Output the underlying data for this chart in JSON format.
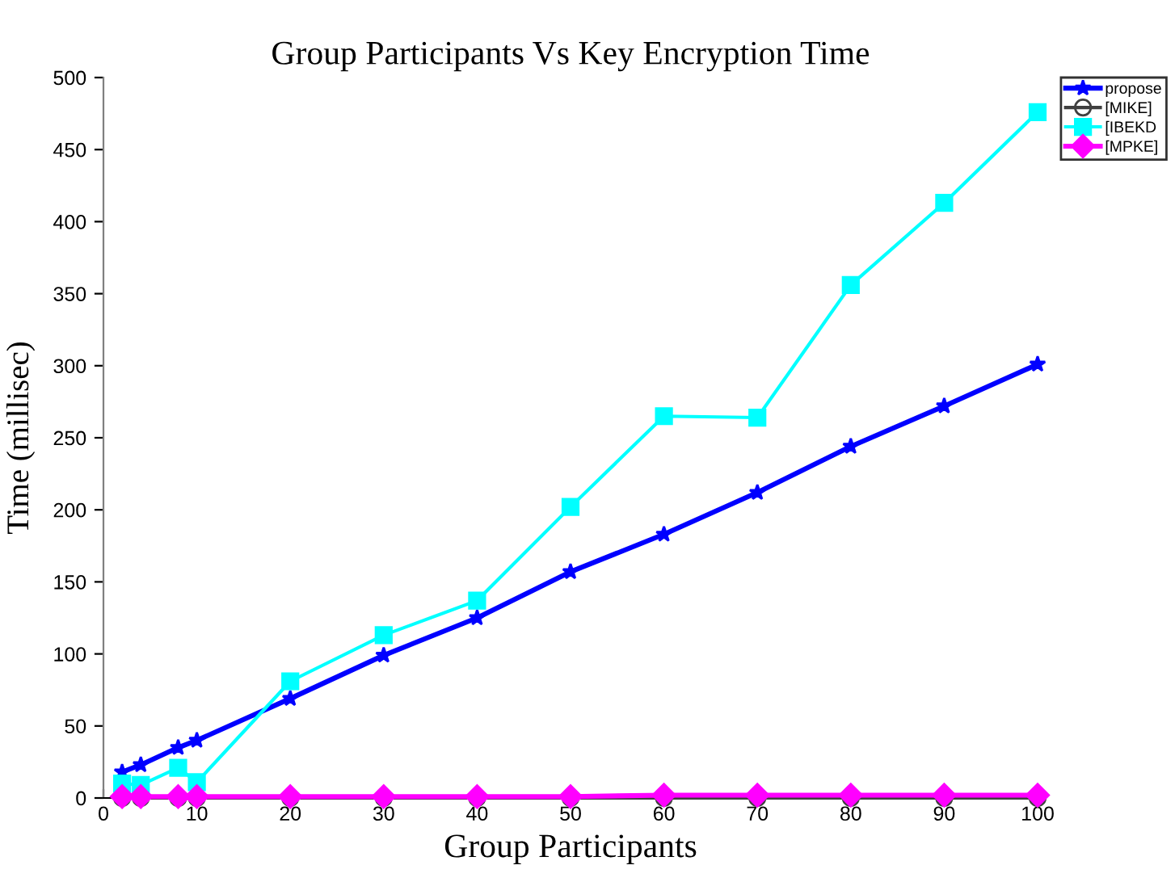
{
  "chart_data": {
    "type": "line",
    "title": "Group Participants Vs Key Encryption Time",
    "xlabel": "Group Participants",
    "ylabel": "Time (millisec)",
    "x": [
      2,
      4,
      8,
      10,
      20,
      30,
      40,
      50,
      60,
      70,
      80,
      90,
      100
    ],
    "series": [
      {
        "name": "propose",
        "color": "#0000ff",
        "marker": "star",
        "values": [
          18,
          23,
          35,
          40,
          69,
          99,
          125,
          157,
          183,
          212,
          244,
          272,
          301
        ]
      },
      {
        "name": "[MIKE]",
        "color": "#404040",
        "marker": "circle",
        "values": [
          0,
          0,
          0,
          0,
          0,
          0,
          0,
          0,
          0,
          0,
          0,
          0,
          0
        ]
      },
      {
        "name": "[IBEKD",
        "color": "#00ffff",
        "marker": "square",
        "values": [
          10,
          9,
          21,
          11,
          81,
          113,
          137,
          202,
          265,
          264,
          356,
          413,
          476
        ]
      },
      {
        "name": "[MPKE]",
        "color": "#ff00ff",
        "marker": "diamond",
        "values": [
          1,
          1,
          1,
          1,
          1,
          1,
          1,
          1,
          2,
          2,
          2,
          2,
          2
        ]
      }
    ],
    "xlim": [
      0,
      100
    ],
    "xticks": [
      0,
      10,
      20,
      30,
      40,
      50,
      60,
      70,
      80,
      90,
      100
    ],
    "ylim": [
      0,
      500
    ],
    "yticks": [
      0,
      50,
      100,
      150,
      200,
      250,
      300,
      350,
      400,
      450,
      500
    ],
    "grid": false,
    "legend": "top right",
    "line_style": "solid"
  }
}
